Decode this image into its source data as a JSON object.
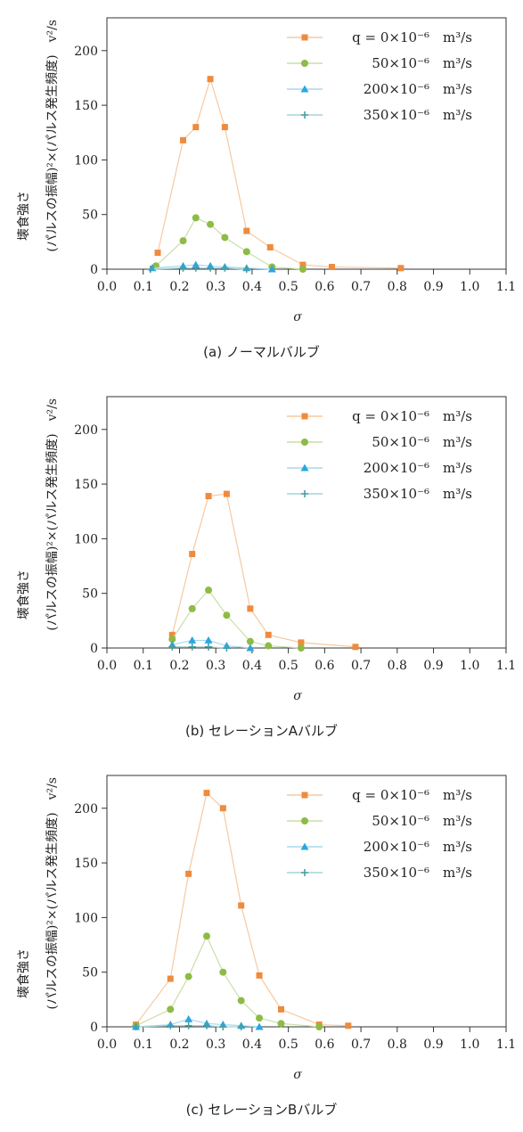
{
  "chart_data": [
    {
      "type": "line",
      "caption": "(a) ノーマルバルブ",
      "xlabel": "σ",
      "ylabel": "壊食強さ",
      "ylabel2": "(パルスの振幅)²×(パルス発生頻度)　v²/s",
      "xlim": [
        0.0,
        1.1
      ],
      "ylim": [
        0,
        230
      ],
      "xticks": [
        "0.0",
        "0.1",
        "0.2",
        "0.3",
        "0.4",
        "0.5",
        "0.6",
        "0.7",
        "0.8",
        "0.9",
        "1.0",
        "1.1"
      ],
      "yticks": [
        "0",
        "50",
        "100",
        "150",
        "200"
      ],
      "legend_position": "top-right",
      "series": [
        {
          "name": "q = 0×10⁻⁶　m³/s",
          "marker": "square",
          "color": "#f08a3c",
          "line_color": "#f7c9a0",
          "x": [
            0.14,
            0.21,
            0.245,
            0.285,
            0.325,
            0.385,
            0.45,
            0.54,
            0.62,
            0.81
          ],
          "y": [
            15,
            118,
            130,
            174,
            130,
            35,
            20,
            4,
            2,
            1
          ]
        },
        {
          "name": "50×10⁻⁶　m³/s",
          "marker": "circle",
          "color": "#8dbb45",
          "line_color": "#c9dfa8",
          "x": [
            0.135,
            0.21,
            0.245,
            0.285,
            0.325,
            0.385,
            0.455,
            0.54
          ],
          "y": [
            3,
            26,
            47,
            41,
            29,
            16,
            2,
            0
          ]
        },
        {
          "name": "200×10⁻⁶　m³/s",
          "marker": "triangle",
          "color": "#2aa7e0",
          "line_color": "#a8d8ef",
          "x": [
            0.125,
            0.21,
            0.245,
            0.285,
            0.325,
            0.385,
            0.455
          ],
          "y": [
            1,
            3,
            4,
            3,
            2,
            1,
            0
          ]
        },
        {
          "name": "350×10⁻⁶　m³/s",
          "marker": "plus",
          "color": "#4a9ea4",
          "line_color": "#a9d3d6",
          "x": [
            0.12,
            0.21,
            0.245,
            0.285,
            0.325,
            0.385
          ],
          "y": [
            0,
            1,
            1,
            1,
            1,
            0
          ]
        }
      ]
    },
    {
      "type": "line",
      "caption": "(b) セレーションAバルブ",
      "xlabel": "σ",
      "ylabel": "壊食強さ",
      "ylabel2": "(パルスの振幅)²×(パルス発生頻度)　v²/s",
      "xlim": [
        0.0,
        1.1
      ],
      "ylim": [
        0,
        230
      ],
      "xticks": [
        "0.0",
        "0.1",
        "0.2",
        "0.3",
        "0.4",
        "0.5",
        "0.6",
        "0.7",
        "0.8",
        "0.9",
        "1.0",
        "1.1"
      ],
      "yticks": [
        "0",
        "50",
        "100",
        "150",
        "200"
      ],
      "legend_position": "top-right",
      "series": [
        {
          "name": "q = 0×10⁻⁶　m³/s",
          "marker": "square",
          "color": "#f08a3c",
          "line_color": "#f7c9a0",
          "x": [
            0.18,
            0.235,
            0.28,
            0.33,
            0.395,
            0.445,
            0.535,
            0.685
          ],
          "y": [
            12,
            86,
            139,
            141,
            36,
            12,
            5,
            1
          ]
        },
        {
          "name": "50×10⁻⁶　m³/s",
          "marker": "circle",
          "color": "#8dbb45",
          "line_color": "#c9dfa8",
          "x": [
            0.18,
            0.235,
            0.28,
            0.33,
            0.395,
            0.445,
            0.535
          ],
          "y": [
            8,
            36,
            53,
            30,
            6,
            2,
            0
          ]
        },
        {
          "name": "200×10⁻⁶　m³/s",
          "marker": "triangle",
          "color": "#2aa7e0",
          "line_color": "#a8d8ef",
          "x": [
            0.18,
            0.235,
            0.28,
            0.33,
            0.395
          ],
          "y": [
            3,
            7,
            7,
            2,
            0
          ]
        },
        {
          "name": "350×10⁻⁶　m³/s",
          "marker": "plus",
          "color": "#4a9ea4",
          "line_color": "#a9d3d6",
          "x": [
            0.18,
            0.235,
            0.28,
            0.33
          ],
          "y": [
            1,
            1,
            1,
            0
          ]
        }
      ]
    },
    {
      "type": "line",
      "caption": "(c) セレーションBバルブ",
      "xlabel": "σ",
      "ylabel": "壊食強さ",
      "ylabel2": "(パルスの振幅)²×(パルス発生頻度)　v²/s",
      "xlim": [
        0.0,
        1.1
      ],
      "ylim": [
        0,
        230
      ],
      "xticks": [
        "0.0",
        "0.1",
        "0.2",
        "0.3",
        "0.4",
        "0.5",
        "0.6",
        "0.7",
        "0.8",
        "0.9",
        "1.0",
        "1.1"
      ],
      "yticks": [
        "0",
        "50",
        "100",
        "150",
        "200"
      ],
      "legend_position": "top-right",
      "series": [
        {
          "name": "q = 0×10⁻⁶　m³/s",
          "marker": "square",
          "color": "#f08a3c",
          "line_color": "#f7c9a0",
          "x": [
            0.08,
            0.175,
            0.225,
            0.275,
            0.32,
            0.37,
            0.42,
            0.48,
            0.585,
            0.665
          ],
          "y": [
            2,
            44,
            140,
            214,
            200,
            111,
            47,
            16,
            2,
            1
          ]
        },
        {
          "name": "50×10⁻⁶　m³/s",
          "marker": "circle",
          "color": "#8dbb45",
          "line_color": "#c9dfa8",
          "x": [
            0.08,
            0.175,
            0.225,
            0.275,
            0.32,
            0.37,
            0.42,
            0.48,
            0.585
          ],
          "y": [
            1,
            16,
            46,
            83,
            50,
            24,
            8,
            3,
            0
          ]
        },
        {
          "name": "200×10⁻⁶　m³/s",
          "marker": "triangle",
          "color": "#2aa7e0",
          "line_color": "#a8d8ef",
          "x": [
            0.08,
            0.175,
            0.225,
            0.275,
            0.32,
            0.37,
            0.42
          ],
          "y": [
            0,
            2,
            7,
            3,
            2,
            1,
            0
          ]
        },
        {
          "name": "350×10⁻⁶　m³/s",
          "marker": "plus",
          "color": "#4a9ea4",
          "line_color": "#a9d3d6",
          "x": [
            0.08,
            0.175,
            0.225,
            0.275,
            0.32,
            0.37
          ],
          "y": [
            0,
            1,
            1,
            1,
            0,
            0
          ]
        }
      ]
    }
  ]
}
